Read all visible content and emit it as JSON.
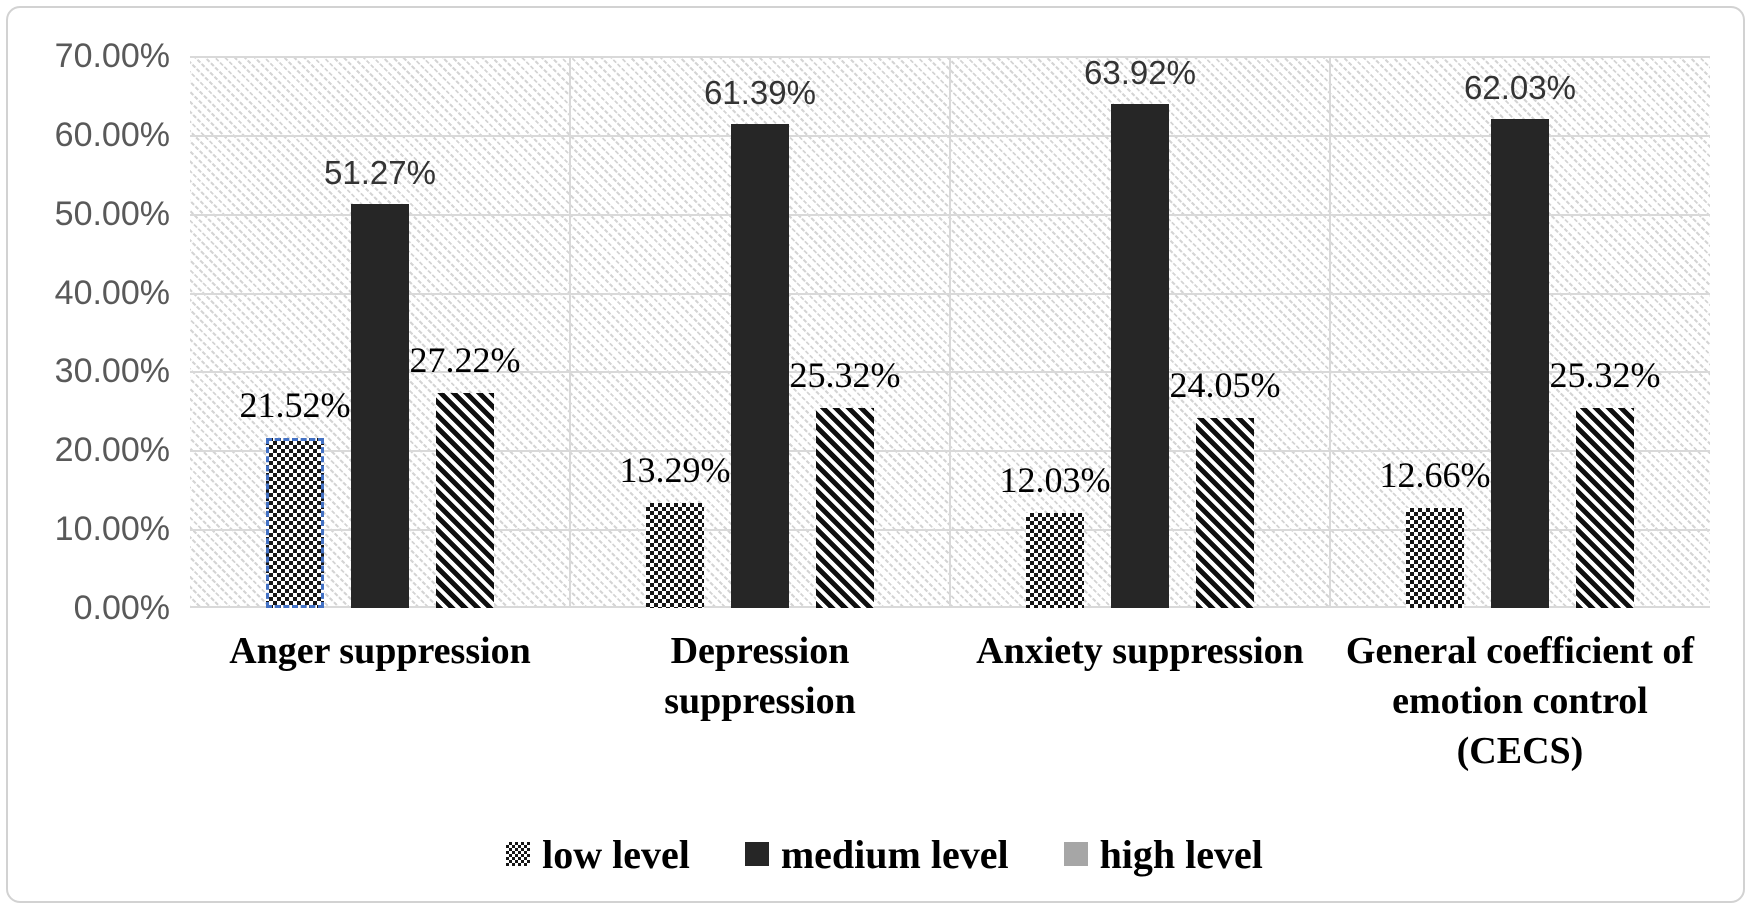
{
  "chart_data": {
    "type": "bar",
    "title": "",
    "categories": [
      {
        "label": "Anger suppression",
        "lines": [
          "Anger suppression"
        ]
      },
      {
        "label": "Depression suppression",
        "lines": [
          "Depression",
          "suppression"
        ]
      },
      {
        "label": "Anxiety suppression",
        "lines": [
          "Anxiety suppression"
        ]
      },
      {
        "label": "General coefficient of emotion control (CECS)",
        "lines": [
          "General coefficient of",
          "emotion control",
          "(CECS)"
        ]
      }
    ],
    "series": [
      {
        "name": "low level",
        "pattern": "checkerboard",
        "label_font": "serif",
        "values": [
          21.52,
          13.29,
          12.03,
          12.66
        ],
        "labels": [
          "21.52%",
          "13.29%",
          "12.03%",
          "12.66%"
        ]
      },
      {
        "name": "medium level",
        "pattern": "solid",
        "label_font": "sans",
        "values": [
          51.27,
          61.39,
          63.92,
          62.03
        ],
        "labels": [
          "51.27%",
          "61.39%",
          "63.92%",
          "62.03%"
        ]
      },
      {
        "name": "high level",
        "pattern": "stripes",
        "label_font": "serif",
        "values": [
          27.22,
          25.32,
          24.05,
          25.32
        ],
        "labels": [
          "27.22%",
          "25.32%",
          "24.05%",
          "25.32%"
        ]
      }
    ],
    "y_axis": {
      "min": 0,
      "max": 70,
      "step": 10,
      "tick_labels": [
        "70.00%",
        "60.00%",
        "50.00%",
        "40.00%",
        "30.00%",
        "20.00%",
        "10.00%",
        "0.00%"
      ]
    },
    "legend": [
      {
        "label": "low level",
        "swatch": "checkerboard"
      },
      {
        "label": "medium level",
        "swatch": "solid-dark"
      },
      {
        "label": "high level",
        "swatch": "solid-gray"
      }
    ],
    "legend_position": "bottom",
    "grid": true,
    "plot_background": "diagonal-hatch",
    "selection": {
      "series_index": 0,
      "category_index": 0
    },
    "colors": {
      "bar_dark": "#262626",
      "pattern_ink": "#0f0f0f",
      "legend_gray": "#a6a6a6",
      "gridline": "#d9d9d9",
      "axis_text": "#595959",
      "data_label_serif": "#000000",
      "data_label_sans": "#333333",
      "selection_blue": "#4472c4",
      "frame_border": "#d2d2d2"
    }
  }
}
